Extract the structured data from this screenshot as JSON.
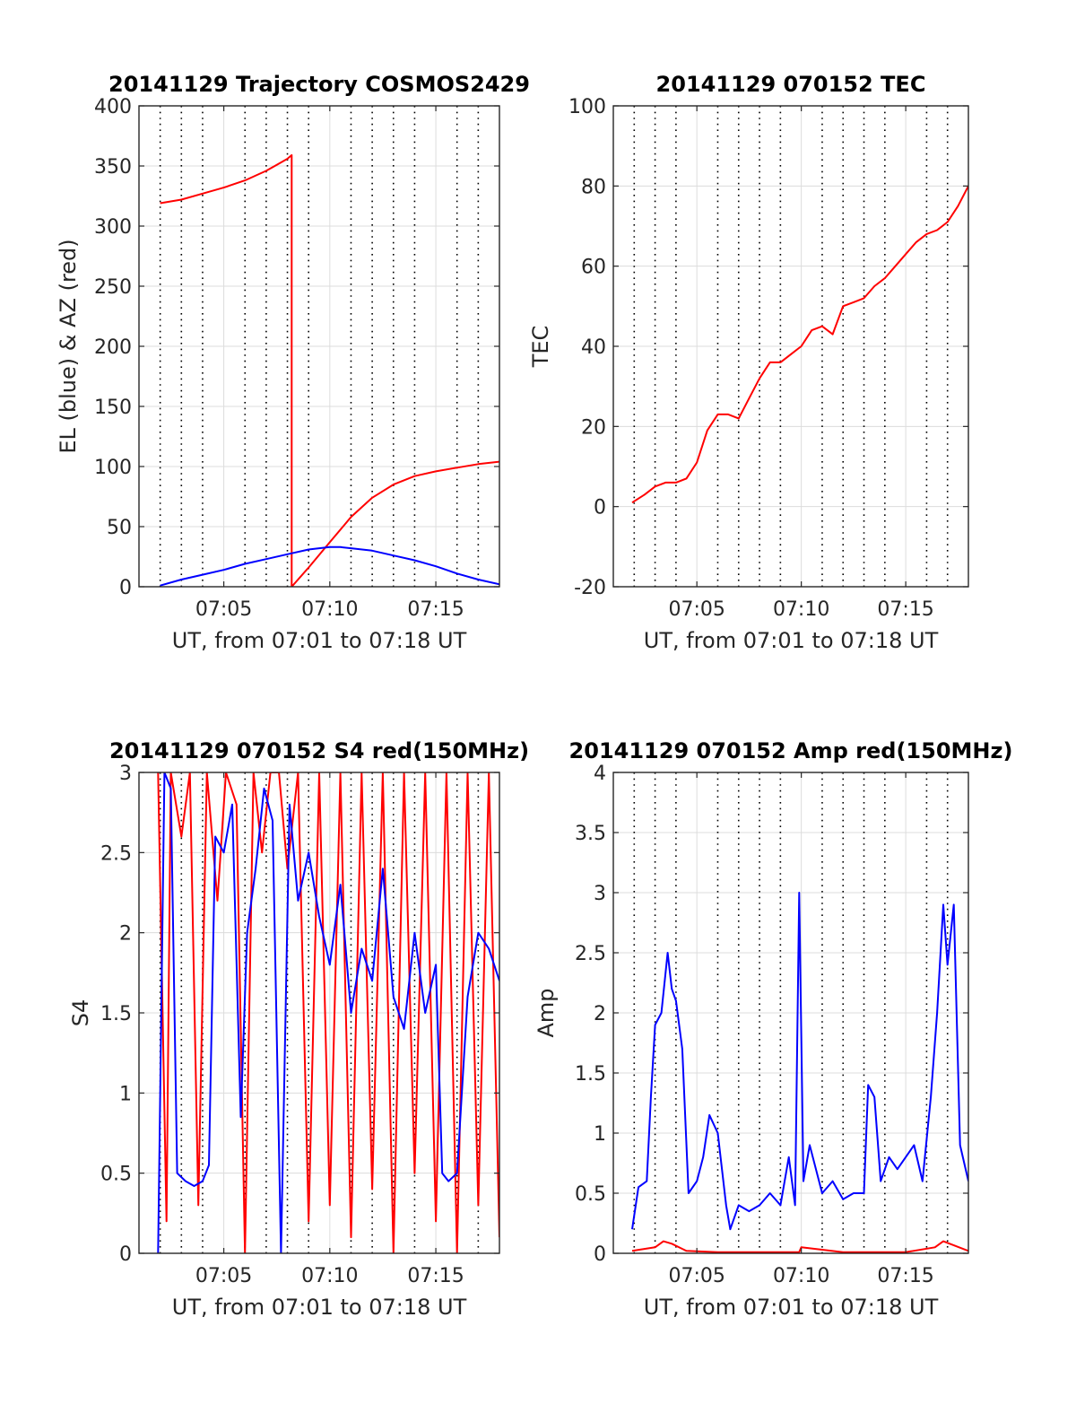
{
  "chart_data": [
    {
      "type": "line",
      "title": "20141129 Trajectory COSMOS2429",
      "xlabel": "UT, from 07:01 to 07:18 UT",
      "ylabel": "EL (blue) & AZ (red)",
      "x_unit": "minutes after 07:00 UT",
      "xlim": [
        1.0,
        18.0
      ],
      "ylim": [
        0,
        400
      ],
      "yticks": [
        0,
        50,
        100,
        150,
        200,
        250,
        300,
        350,
        400
      ],
      "yticklabels": [
        "0",
        "50",
        "100",
        "150",
        "200",
        "250",
        "300",
        "350",
        "400"
      ],
      "xticks": [
        5,
        10,
        15
      ],
      "xticklabels": [
        "07:05",
        "07:10",
        "07:15"
      ],
      "minor_x_gridlines": [
        2,
        3,
        4,
        6,
        7,
        8,
        9,
        11,
        12,
        13,
        14,
        16,
        17
      ],
      "grid": "on",
      "series": [
        {
          "color": "#ff0000",
          "x": [
            2.0,
            3.0,
            4.0,
            5.0,
            6.0,
            7.0,
            7.5,
            8.0,
            8.2,
            8.2,
            9.0,
            10.0,
            11.0,
            12.0,
            13.0,
            14.0,
            15.0,
            16.0,
            17.0,
            18.0
          ],
          "y": [
            319,
            322,
            327,
            332,
            338,
            346,
            351,
            356,
            359,
            0,
            16,
            37,
            58,
            74,
            85,
            92,
            96,
            99,
            102,
            104
          ]
        },
        {
          "color": "#0000ff",
          "x": [
            2.0,
            3.0,
            4.0,
            5.0,
            6.0,
            7.0,
            8.0,
            9.0,
            10.0,
            10.5,
            11.0,
            12.0,
            13.0,
            14.0,
            15.0,
            16.0,
            17.0,
            18.0
          ],
          "y": [
            1,
            6,
            10,
            14,
            19,
            23,
            27,
            31,
            33,
            33,
            32,
            30,
            26,
            22,
            17,
            11,
            6,
            2
          ]
        }
      ]
    },
    {
      "type": "line",
      "title": "20141129 070152 TEC",
      "xlabel": "UT, from 07:01 to 07:18 UT",
      "ylabel": "TEC",
      "x_unit": "minutes after 07:00 UT",
      "xlim": [
        1.0,
        18.0
      ],
      "ylim": [
        -20,
        100
      ],
      "yticks": [
        -20,
        0,
        20,
        40,
        60,
        80,
        100
      ],
      "yticklabels": [
        "-20",
        "0",
        "20",
        "40",
        "60",
        "80",
        "100"
      ],
      "xticks": [
        5,
        10,
        15
      ],
      "xticklabels": [
        "07:05",
        "07:10",
        "07:15"
      ],
      "minor_x_gridlines": [
        2,
        3,
        4,
        6,
        7,
        8,
        9,
        11,
        12,
        13,
        14,
        16,
        17
      ],
      "grid": "on",
      "series": [
        {
          "color": "#ff0000",
          "x": [
            1.9,
            2.5,
            3.0,
            3.5,
            4.0,
            4.5,
            5.0,
            5.5,
            6.0,
            6.5,
            7.0,
            7.5,
            8.0,
            8.5,
            9.0,
            9.5,
            10.0,
            10.5,
            11.0,
            11.5,
            12.0,
            12.5,
            13.0,
            13.5,
            14.0,
            14.5,
            15.0,
            15.5,
            16.0,
            16.5,
            17.0,
            17.5,
            18.0
          ],
          "y": [
            1,
            3,
            5,
            6,
            6,
            7,
            11,
            19,
            23,
            23,
            22,
            27,
            32,
            36,
            36,
            38,
            40,
            44,
            45,
            43,
            50,
            51,
            52,
            55,
            57,
            60,
            63,
            66,
            68,
            69,
            71,
            75,
            80
          ]
        }
      ]
    },
    {
      "type": "line",
      "title": "20141129 070152 S4 red(150MHz)",
      "xlabel": "UT, from 07:01 to 07:18 UT",
      "ylabel": "S4",
      "x_unit": "minutes after 07:00 UT",
      "xlim": [
        1.0,
        18.0
      ],
      "ylim": [
        0,
        3
      ],
      "yticks": [
        0,
        0.5,
        1,
        1.5,
        2,
        2.5,
        3
      ],
      "yticklabels": [
        "0",
        "0.5",
        "1",
        "1.5",
        "2",
        "2.5",
        "3"
      ],
      "xticks": [
        5,
        10,
        15
      ],
      "xticklabels": [
        "07:05",
        "07:10",
        "07:15"
      ],
      "minor_x_gridlines": [
        2,
        3,
        4,
        6,
        7,
        8,
        9,
        11,
        12,
        13,
        14,
        16,
        17
      ],
      "grid": "on",
      "series": [
        {
          "color": "#ff0000",
          "x": [
            1.9,
            2.3,
            2.5,
            3.0,
            3.4,
            3.8,
            4.2,
            4.7,
            5.1,
            5.6,
            6.0,
            6.4,
            6.8,
            7.2,
            7.6,
            8.0,
            8.5,
            9.0,
            9.5,
            10.0,
            10.5,
            11.0,
            11.5,
            12.0,
            12.5,
            13.0,
            13.5,
            14.0,
            14.5,
            15.0,
            15.5,
            16.0,
            16.5,
            17.0,
            17.5,
            18.0
          ],
          "y": [
            3.0,
            0.2,
            3.0,
            2.6,
            3.0,
            0.3,
            3.0,
            2.2,
            3.0,
            2.8,
            0.0,
            3.0,
            2.5,
            3.0,
            3.0,
            2.4,
            3.0,
            0.2,
            3.0,
            0.3,
            3.0,
            0.1,
            3.0,
            0.4,
            3.0,
            0.0,
            3.0,
            0.5,
            3.0,
            0.2,
            3.0,
            0.0,
            3.0,
            0.3,
            3.0,
            0.1
          ]
        },
        {
          "color": "#0000ff",
          "x": [
            1.9,
            2.2,
            2.5,
            2.8,
            3.2,
            3.6,
            4.0,
            4.3,
            4.6,
            5.0,
            5.4,
            5.8,
            6.1,
            6.5,
            6.9,
            7.3,
            7.7,
            8.1,
            8.5,
            9.0,
            9.5,
            10.0,
            10.5,
            11.0,
            11.5,
            12.0,
            12.5,
            13.0,
            13.5,
            14.0,
            14.5,
            15.0,
            15.3,
            15.6,
            16.0,
            16.5,
            17.0,
            17.5,
            18.0
          ],
          "y": [
            0.0,
            3.0,
            2.9,
            0.5,
            0.45,
            0.42,
            0.45,
            0.55,
            2.6,
            2.5,
            2.8,
            0.85,
            2.0,
            2.4,
            2.9,
            2.7,
            0.0,
            2.8,
            2.2,
            2.5,
            2.1,
            1.8,
            2.3,
            1.5,
            1.9,
            1.7,
            2.4,
            1.6,
            1.4,
            2.0,
            1.5,
            1.8,
            0.5,
            0.45,
            0.5,
            1.6,
            2.0,
            1.9,
            1.7
          ]
        }
      ]
    },
    {
      "type": "line",
      "title": "20141129 070152 Amp red(150MHz)",
      "xlabel": "UT, from 07:01 to 07:18 UT",
      "ylabel": "Amp",
      "x_unit": "minutes after 07:00 UT",
      "xlim": [
        1.0,
        18.0
      ],
      "ylim": [
        0,
        4
      ],
      "yticks": [
        0,
        0.5,
        1,
        1.5,
        2,
        2.5,
        3,
        3.5,
        4
      ],
      "yticklabels": [
        "0",
        "0.5",
        "1",
        "1.5",
        "2",
        "2.5",
        "3",
        "3.5",
        "4"
      ],
      "xticks": [
        5,
        10,
        15
      ],
      "xticklabels": [
        "07:05",
        "07:10",
        "07:15"
      ],
      "minor_x_gridlines": [
        2,
        3,
        4,
        6,
        7,
        8,
        9,
        11,
        12,
        13,
        14,
        16,
        17
      ],
      "grid": "on",
      "series": [
        {
          "color": "#ff0000",
          "x": [
            1.9,
            3.0,
            3.4,
            3.8,
            4.5,
            6.0,
            8.0,
            9.9,
            10.0,
            12.0,
            14.0,
            15.0,
            16.4,
            16.8,
            18.0
          ],
          "y": [
            0.02,
            0.05,
            0.1,
            0.08,
            0.02,
            0.01,
            0.01,
            0.01,
            0.05,
            0.01,
            0.01,
            0.01,
            0.05,
            0.1,
            0.02
          ]
        },
        {
          "color": "#0000ff",
          "x": [
            1.9,
            2.2,
            2.6,
            2.8,
            3.0,
            3.3,
            3.6,
            3.8,
            4.0,
            4.3,
            4.6,
            5.0,
            5.3,
            5.6,
            6.0,
            6.4,
            6.6,
            7.0,
            7.5,
            8.0,
            8.5,
            9.0,
            9.4,
            9.7,
            9.9,
            10.1,
            10.4,
            11.0,
            11.5,
            12.0,
            12.5,
            13.0,
            13.2,
            13.5,
            13.8,
            14.2,
            14.6,
            15.0,
            15.4,
            15.8,
            16.2,
            16.5,
            16.8,
            17.0,
            17.3,
            17.6,
            18.0
          ],
          "y": [
            0.2,
            0.55,
            0.6,
            1.3,
            1.9,
            2.0,
            2.5,
            2.2,
            2.1,
            1.7,
            0.5,
            0.6,
            0.8,
            1.15,
            1.0,
            0.4,
            0.2,
            0.4,
            0.35,
            0.4,
            0.5,
            0.4,
            0.8,
            0.4,
            3.0,
            0.6,
            0.9,
            0.5,
            0.6,
            0.45,
            0.5,
            0.5,
            1.4,
            1.3,
            0.6,
            0.8,
            0.7,
            0.8,
            0.9,
            0.6,
            1.3,
            2.0,
            2.9,
            2.4,
            2.9,
            0.9,
            0.6
          ]
        }
      ]
    }
  ]
}
